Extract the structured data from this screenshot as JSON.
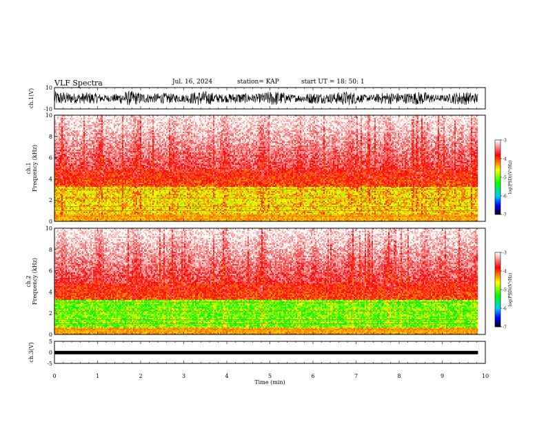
{
  "header": {
    "title": "VLF Spectra",
    "date": "Jul. 16, 2024",
    "station": "station= KAP",
    "start": "start UT =  18: 50: 1"
  },
  "chart_data": [
    {
      "type": "line",
      "ylabel": "ch.1(V)",
      "ylim": [
        -10,
        10
      ],
      "yticks": [
        "10",
        "-10"
      ],
      "xlim": [
        0,
        10
      ],
      "series": [
        {
          "description_values": "noisy waveform spanning about -7 to 7 V"
        }
      ]
    },
    {
      "type": "heatmap",
      "ylabel_line1": "ch.1",
      "ylabel_line2": "Frequency (kHz)",
      "ylim": [
        0,
        10
      ],
      "yticks": [
        "0",
        "2",
        "4",
        "6",
        "8",
        "10"
      ],
      "xlim": [
        0,
        9.83
      ],
      "colorbar": {
        "label": "log(PSD)(V²/Hz)",
        "range": [
          -7,
          -3
        ],
        "ticks": [
          "-3",
          "-4",
          "-5",
          "-6",
          "-7"
        ]
      }
    },
    {
      "type": "heatmap",
      "ylabel_line1": "ch.2",
      "ylabel_line2": "Frequency (kHz)",
      "ylim": [
        0,
        10
      ],
      "yticks": [
        "0",
        "2",
        "4",
        "6",
        "8",
        "10"
      ],
      "xlim": [
        0,
        9.83
      ],
      "colorbar": {
        "label": "log(PSD)(V²/Hz)",
        "range": [
          -7,
          -3
        ],
        "ticks": [
          "-3",
          "-4",
          "-5",
          "-6",
          "-7"
        ]
      }
    },
    {
      "type": "line",
      "ylabel": "ch.3(V)",
      "ylim": [
        -5,
        5
      ],
      "yticks": [
        "5",
        "0",
        "-5"
      ],
      "xlim": [
        0,
        10
      ],
      "series": [
        {
          "level": -0.1
        }
      ]
    }
  ],
  "xaxis": {
    "label": "Time (min)",
    "ticks": [
      "0",
      "1",
      "2",
      "3",
      "4",
      "5",
      "6",
      "7",
      "8",
      "9",
      "10"
    ]
  },
  "colors": {
    "scale": [
      "#000000",
      "#0000ff",
      "#00d0ff",
      "#00ff00",
      "#ffff00",
      "#ff8000",
      "#ff0000",
      "#ffffff"
    ]
  }
}
